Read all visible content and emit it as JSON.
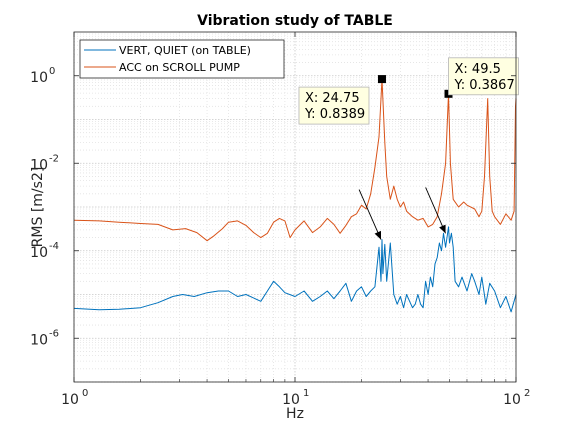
{
  "chart_data": {
    "type": "line",
    "title": "Vibration study of TABLE",
    "xlabel": "Hz",
    "ylabel": "RMS [m/s2]",
    "xscale": "log",
    "yscale": "log",
    "xlim": [
      1,
      100
    ],
    "ylim": [
      1e-07,
      10
    ],
    "grid": "major and minor",
    "legend_position": "top-left",
    "x_ticks": [
      {
        "value": 1,
        "base": "10",
        "exp": "0"
      },
      {
        "value": 10,
        "base": "10",
        "exp": "1"
      },
      {
        "value": 100,
        "base": "10",
        "exp": "2"
      }
    ],
    "y_ticks": [
      {
        "value": 1e-06,
        "base": "10",
        "exp": "-6"
      },
      {
        "value": 0.0001,
        "base": "10",
        "exp": "-4"
      },
      {
        "value": 0.01,
        "base": "10",
        "exp": "-2"
      },
      {
        "value": 1,
        "base": "10",
        "exp": "0"
      }
    ],
    "series": [
      {
        "name": "VERT, QUIET (on TABLE)",
        "color": "#0072BD",
        "points": [
          [
            1,
            4.8e-06
          ],
          [
            1.3,
            4.5e-06
          ],
          [
            1.6,
            4.6e-06
          ],
          [
            2,
            5e-06
          ],
          [
            2.4,
            6.5e-06
          ],
          [
            2.8,
            9e-06
          ],
          [
            3.1,
            1e-05
          ],
          [
            3.5,
            9e-06
          ],
          [
            4,
            1.1e-05
          ],
          [
            4.5,
            1.2e-05
          ],
          [
            5,
            1.2e-05
          ],
          [
            5.5,
            9e-06
          ],
          [
            6,
            1e-05
          ],
          [
            7,
            7e-06
          ],
          [
            7.5,
            1.2e-05
          ],
          [
            8,
            2e-05
          ],
          [
            8.5,
            1.5e-05
          ],
          [
            9,
            1.1e-05
          ],
          [
            10,
            9e-06
          ],
          [
            11,
            1.2e-05
          ],
          [
            12,
            7e-06
          ],
          [
            13,
            9e-06
          ],
          [
            14,
            1.2e-05
          ],
          [
            15,
            8e-06
          ],
          [
            16,
            1.2e-05
          ],
          [
            17,
            1.8e-05
          ],
          [
            18,
            7e-06
          ],
          [
            19,
            1.2e-05
          ],
          [
            20,
            1.5e-05
          ],
          [
            21,
            9e-06
          ],
          [
            22,
            1.2e-05
          ],
          [
            23,
            1.5e-05
          ],
          [
            24,
            0.00012
          ],
          [
            24.5,
            2e-05
          ],
          [
            24.75,
            0.00018
          ],
          [
            25,
            3e-05
          ],
          [
            25.5,
            0.00014
          ],
          [
            26,
            2e-05
          ],
          [
            27,
            0.00015
          ],
          [
            28,
            1e-05
          ],
          [
            29,
            6e-06
          ],
          [
            30,
            9e-06
          ],
          [
            31,
            5e-06
          ],
          [
            32,
            1e-05
          ],
          [
            33,
            7e-06
          ],
          [
            34,
            5e-06
          ],
          [
            35,
            6e-06
          ],
          [
            36,
            1e-05
          ],
          [
            37,
            6e-06
          ],
          [
            38,
            5e-06
          ],
          [
            39,
            2e-05
          ],
          [
            40,
            1e-05
          ],
          [
            41,
            2.5e-05
          ],
          [
            42,
            1.5e-05
          ],
          [
            43,
            5e-05
          ],
          [
            44,
            7e-05
          ],
          [
            45,
            0.00015
          ],
          [
            46,
            0.0001
          ],
          [
            47,
            0.00025
          ],
          [
            48,
            0.00012
          ],
          [
            49.5,
            0.00035
          ],
          [
            50,
            0.00015
          ],
          [
            51,
            0.00025
          ],
          [
            52,
            0.00012
          ],
          [
            53,
            2e-05
          ],
          [
            55,
            1.5e-05
          ],
          [
            57,
            2.5e-05
          ],
          [
            60,
            1.2e-05
          ],
          [
            63,
            3e-05
          ],
          [
            65,
            2e-05
          ],
          [
            68,
            1e-05
          ],
          [
            70,
            2.5e-05
          ],
          [
            73,
            6e-06
          ],
          [
            76,
            1.8e-05
          ],
          [
            80,
            1.2e-05
          ],
          [
            85,
            5e-06
          ],
          [
            90,
            9e-06
          ],
          [
            95,
            4e-06
          ],
          [
            100,
            1e-05
          ]
        ]
      },
      {
        "name": "ACC on SCROLL PUMP",
        "color": "#D95319",
        "points": [
          [
            1,
            0.0005
          ],
          [
            1.3,
            0.00048
          ],
          [
            1.6,
            0.00045
          ],
          [
            2,
            0.00042
          ],
          [
            2.4,
            0.0004
          ],
          [
            2.8,
            0.0003
          ],
          [
            3.2,
            0.00032
          ],
          [
            3.6,
            0.00026
          ],
          [
            4,
            0.00017
          ],
          [
            4.3,
            0.00022
          ],
          [
            4.7,
            0.00032
          ],
          [
            5,
            0.00045
          ],
          [
            5.5,
            0.00048
          ],
          [
            6,
            0.00038
          ],
          [
            6.5,
            0.00026
          ],
          [
            7,
            0.0002
          ],
          [
            7.5,
            0.00025
          ],
          [
            8,
            0.00045
          ],
          [
            8.5,
            0.00055
          ],
          [
            9,
            0.00048
          ],
          [
            9.5,
            0.0002
          ],
          [
            10,
            0.0003
          ],
          [
            11,
            0.00048
          ],
          [
            12,
            0.00026
          ],
          [
            13,
            0.00035
          ],
          [
            14,
            0.00055
          ],
          [
            15,
            0.0004
          ],
          [
            16,
            0.00025
          ],
          [
            17,
            0.00038
          ],
          [
            18,
            0.0006
          ],
          [
            19,
            0.0007
          ],
          [
            20,
            0.0011
          ],
          [
            21,
            0.0009
          ],
          [
            22,
            0.002
          ],
          [
            23,
            0.008
          ],
          [
            24,
            0.04
          ],
          [
            24.75,
            0.8389
          ],
          [
            25.5,
            0.03
          ],
          [
            26,
            0.005
          ],
          [
            27,
            0.0015
          ],
          [
            28,
            0.003
          ],
          [
            29,
            0.0015
          ],
          [
            30,
            0.001
          ],
          [
            31,
            0.0013
          ],
          [
            32,
            0.0008
          ],
          [
            34,
            0.0006
          ],
          [
            36,
            0.0005
          ],
          [
            38,
            0.00055
          ],
          [
            40,
            0.00035
          ],
          [
            42,
            0.0004
          ],
          [
            44,
            0.0006
          ],
          [
            46,
            0.002
          ],
          [
            48,
            0.01
          ],
          [
            49.5,
            0.3867
          ],
          [
            50.5,
            0.01
          ],
          [
            52,
            0.0015
          ],
          [
            55,
            0.001
          ],
          [
            58,
            0.0013
          ],
          [
            60,
            0.0011
          ],
          [
            65,
            0.0009
          ],
          [
            68,
            0.0006
          ],
          [
            70,
            0.0008
          ],
          [
            72,
            0.005
          ],
          [
            74.5,
            0.3
          ],
          [
            76,
            0.005
          ],
          [
            78,
            0.0008
          ],
          [
            80,
            0.0006
          ],
          [
            85,
            0.0004
          ],
          [
            90,
            0.0007
          ],
          [
            95,
            0.0005
          ],
          [
            98,
            0.0008
          ],
          [
            99.5,
            0.2
          ],
          [
            100,
            0.3
          ]
        ]
      }
    ],
    "datatips": [
      {
        "x": 24.75,
        "y": 0.8389,
        "x_text": "X: 24.75",
        "y_text": "Y: 0.8389"
      },
      {
        "x": 49.5,
        "y": 0.3867,
        "x_text": "X: 49.5",
        "y_text": "Y: 0.3867"
      }
    ],
    "arrows": [
      {
        "tail": [
          19.5,
          0.0025
        ],
        "head": [
          24.5,
          0.00018
        ]
      },
      {
        "tail": [
          39,
          0.0028
        ],
        "head": [
          48,
          0.00025
        ]
      }
    ]
  }
}
